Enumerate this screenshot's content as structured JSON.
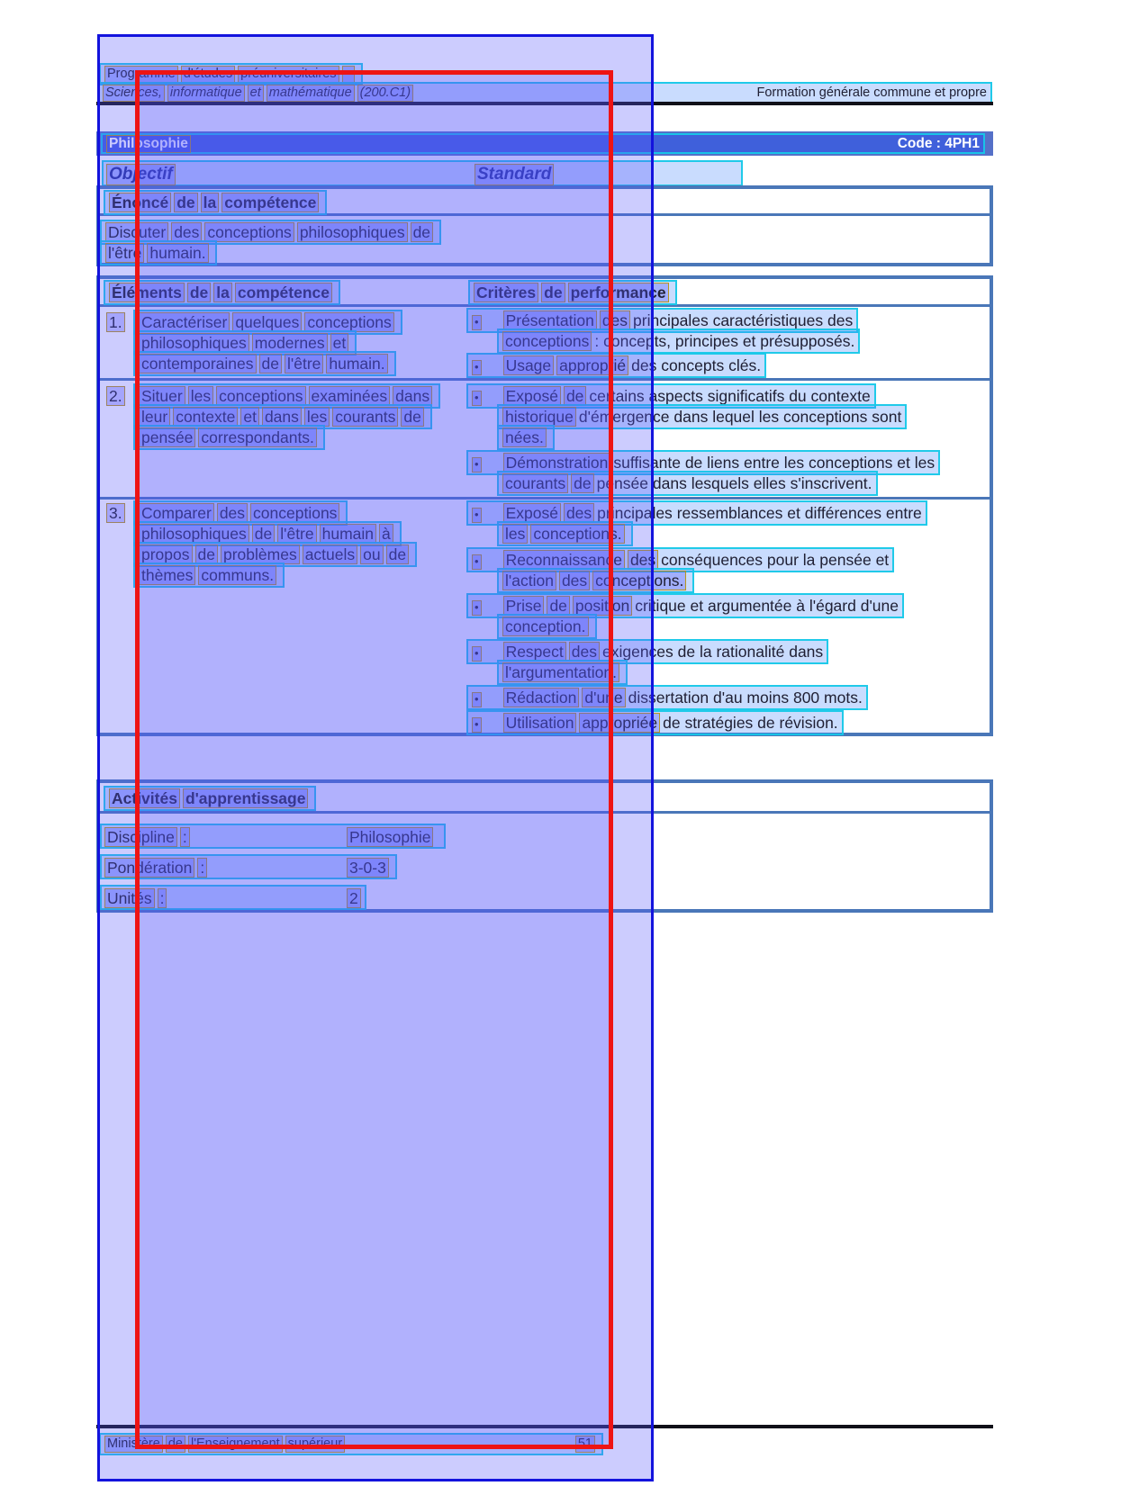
{
  "bullet_char": "•",
  "header": {
    "line1": "Programme d'études préuniversitaires –",
    "line2_left": "Sciences, informatique et mathématique (200.C1)",
    "line2_right": "Formation générale commune et propre"
  },
  "title_bar": {
    "title": "Philosophie",
    "code": "Code : 4PH1"
  },
  "columns": {
    "left": "Objectif",
    "right": "Standard"
  },
  "enonce": {
    "header": "Énoncé de la compétence",
    "lines": [
      "Discuter des conceptions philosophiques de",
      "l'être humain."
    ]
  },
  "table": {
    "left_header": "Éléments de la compétence",
    "right_header": "Critères de performance",
    "rows": [
      {
        "num": "1.",
        "left": [
          "Caractériser quelques conceptions",
          "philosophiques modernes et",
          "contemporaines de l'être humain."
        ],
        "bullets": [
          [
            "Présentation des principales caractéristiques des",
            "conceptions : concepts, principes et présupposés."
          ],
          [
            "Usage approprié des concepts clés."
          ]
        ]
      },
      {
        "num": "2.",
        "left": [
          "Situer les conceptions examinées dans",
          "leur contexte et dans les courants de",
          "pensée correspondants."
        ],
        "bullets": [
          [
            "Exposé de certains aspects significatifs du contexte",
            "historique d'émergence dans lequel les conceptions sont",
            "nées."
          ],
          [
            "Démonstration suffisante de liens entre les conceptions et les",
            "courants de pensée dans lesquels elles s'inscrivent."
          ]
        ]
      },
      {
        "num": "3.",
        "left": [
          "Comparer des conceptions",
          "philosophiques de l'être humain à",
          "propos de problèmes actuels ou de",
          "thèmes communs."
        ],
        "bullets": [
          [
            "Exposé des principales ressemblances et différences entre",
            "les conceptions."
          ],
          [
            "Reconnaissance des conséquences pour la pensée et",
            "l'action des conceptions."
          ],
          [
            "Prise de position critique et argumentée à l'égard d'une",
            "conception."
          ],
          [
            "Respect des exigences de la rationalité dans",
            "l'argumentation."
          ],
          [
            "Rédaction d'une dissertation d'au moins 800 mots."
          ],
          [
            "Utilisation appropriée de stratégies de révision."
          ]
        ]
      }
    ]
  },
  "activites": {
    "header": "Activités d'apprentissage",
    "rows": [
      {
        "label": "Discipline :",
        "value": "Philosophie"
      },
      {
        "label": "Pondération :",
        "value": "3-0-3"
      },
      {
        "label": "Unités :",
        "value": "2"
      }
    ]
  },
  "footer": {
    "left": "Ministère de l'Enseignement supérieur",
    "page": "51"
  },
  "colors": {
    "title_bar_bg": "#5570c8",
    "table_border": "#4a77b8",
    "overlay_blue": "#1313dd",
    "overlay_red": "#ee1414",
    "line_box": "#17c8e8",
    "word_box": "#b99413",
    "rule": "#101018"
  }
}
